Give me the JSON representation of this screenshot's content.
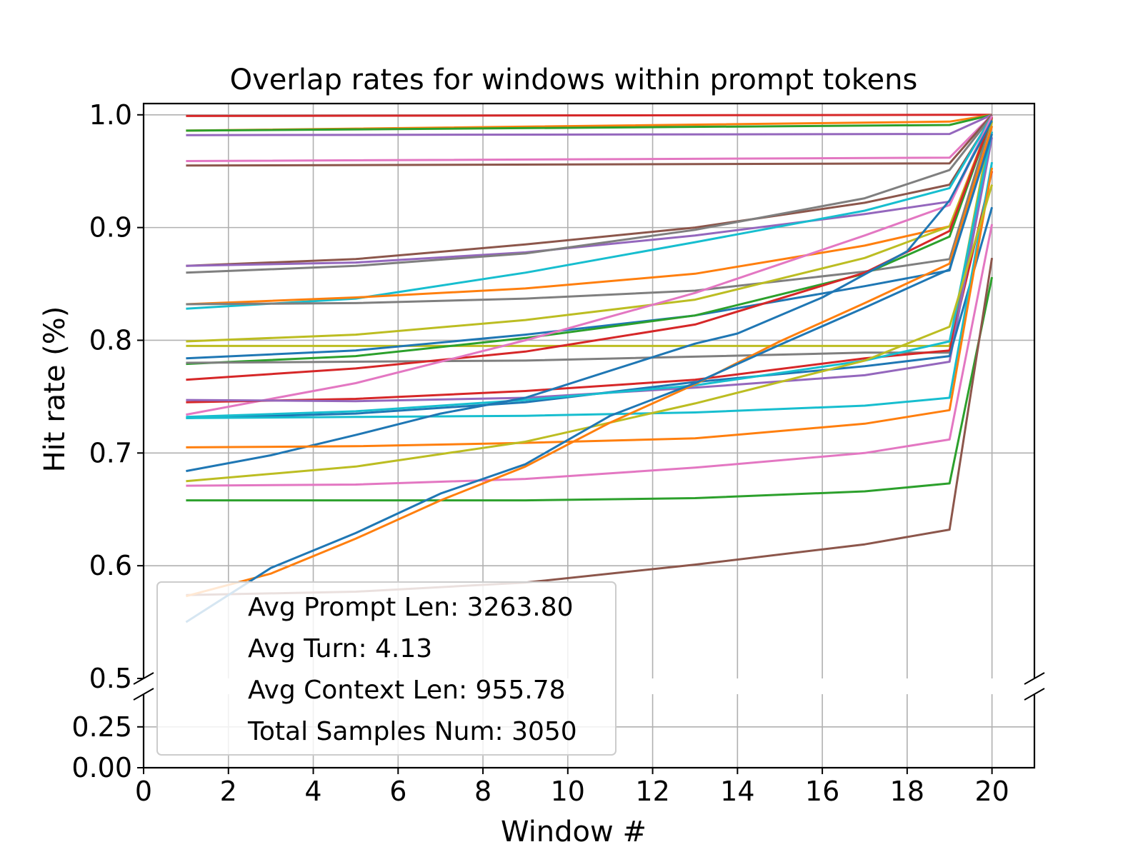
{
  "chart_data": {
    "type": "line",
    "title": "Overlap rates for windows within prompt tokens",
    "xlabel": "Window #",
    "ylabel": "Hit rate (%)",
    "xlim": [
      0,
      21
    ],
    "ylim_top": [
      0.5,
      1.01
    ],
    "ylim_bottom": [
      0,
      0.45
    ],
    "broken_axis": true,
    "grid": true,
    "x_ticks": [
      "0",
      "2",
      "4",
      "6",
      "8",
      "10",
      "12",
      "14",
      "16",
      "18",
      "20"
    ],
    "y_ticks_top": [
      "0.5",
      "0.6",
      "0.7",
      "0.8",
      "0.9",
      "1.0"
    ],
    "y_ticks_bottom": [
      "0.00",
      "0.25"
    ],
    "legend_placement": "lower-left",
    "legend_lines": [
      "Avg Prompt Len: 3263.80",
      "Avg Turn: 4.13",
      "Avg Context Len: 955.78",
      "Total Samples Num: 3050"
    ],
    "series": [
      {
        "color": "#d62728",
        "points": [
          [
            1,
            0.999
          ],
          [
            19,
            1.0
          ],
          [
            20,
            1.0
          ]
        ]
      },
      {
        "color": "#ff7f0e",
        "points": [
          [
            1,
            0.986
          ],
          [
            19,
            0.994
          ],
          [
            20,
            1.0
          ]
        ]
      },
      {
        "color": "#2ca02c",
        "points": [
          [
            1,
            0.986
          ],
          [
            19,
            0.991
          ],
          [
            20,
            1.0
          ]
        ]
      },
      {
        "color": "#9467bd",
        "points": [
          [
            1,
            0.982
          ],
          [
            19,
            0.983
          ],
          [
            20,
            1.0
          ]
        ]
      },
      {
        "color": "#e377c2",
        "points": [
          [
            1,
            0.959
          ],
          [
            19,
            0.962
          ],
          [
            20,
            1.0
          ]
        ]
      },
      {
        "color": "#8c564b",
        "points": [
          [
            1,
            0.955
          ],
          [
            19,
            0.957
          ],
          [
            20,
            1.0
          ]
        ]
      },
      {
        "color": "#8c564b",
        "points": [
          [
            1,
            0.866
          ],
          [
            5,
            0.872
          ],
          [
            9,
            0.885
          ],
          [
            13,
            0.9
          ],
          [
            17,
            0.922
          ],
          [
            19,
            0.938
          ],
          [
            20,
            0.998
          ]
        ]
      },
      {
        "color": "#9467bd",
        "points": [
          [
            1,
            0.866
          ],
          [
            5,
            0.869
          ],
          [
            9,
            0.878
          ],
          [
            13,
            0.893
          ],
          [
            17,
            0.912
          ],
          [
            19,
            0.923
          ],
          [
            20,
            0.998
          ]
        ]
      },
      {
        "color": "#7f7f7f",
        "points": [
          [
            1,
            0.86
          ],
          [
            5,
            0.866
          ],
          [
            9,
            0.877
          ],
          [
            13,
            0.898
          ],
          [
            17,
            0.926
          ],
          [
            19,
            0.951
          ],
          [
            20,
            0.999
          ]
        ]
      },
      {
        "color": "#17becf",
        "points": [
          [
            1,
            0.828
          ],
          [
            5,
            0.837
          ],
          [
            9,
            0.86
          ],
          [
            13,
            0.887
          ],
          [
            17,
            0.915
          ],
          [
            19,
            0.935
          ],
          [
            20,
            0.999
          ]
        ]
      },
      {
        "color": "#ff7f0e",
        "points": [
          [
            1,
            0.832
          ],
          [
            5,
            0.838
          ],
          [
            9,
            0.846
          ],
          [
            13,
            0.859
          ],
          [
            17,
            0.884
          ],
          [
            19,
            0.901
          ],
          [
            20,
            0.998
          ]
        ]
      },
      {
        "color": "#7f7f7f",
        "points": [
          [
            1,
            0.832
          ],
          [
            5,
            0.833
          ],
          [
            9,
            0.837
          ],
          [
            13,
            0.844
          ],
          [
            17,
            0.861
          ],
          [
            19,
            0.872
          ],
          [
            20,
            0.997
          ]
        ]
      },
      {
        "color": "#bcbd22",
        "points": [
          [
            1,
            0.799
          ],
          [
            5,
            0.805
          ],
          [
            9,
            0.818
          ],
          [
            13,
            0.836
          ],
          [
            17,
            0.873
          ],
          [
            19,
            0.901
          ],
          [
            20,
            0.996
          ]
        ]
      },
      {
        "color": "#bcbd22",
        "points": [
          [
            1,
            0.795
          ],
          [
            9,
            0.795
          ],
          [
            17,
            0.795
          ],
          [
            19,
            0.795
          ],
          [
            20,
            0.994
          ]
        ]
      },
      {
        "color": "#1f77b4",
        "points": [
          [
            1,
            0.784
          ],
          [
            5,
            0.791
          ],
          [
            9,
            0.805
          ],
          [
            13,
            0.822
          ],
          [
            17,
            0.848
          ],
          [
            19,
            0.862
          ],
          [
            20,
            0.99
          ]
        ]
      },
      {
        "color": "#2ca02c",
        "points": [
          [
            1,
            0.779
          ],
          [
            5,
            0.786
          ],
          [
            9,
            0.802
          ],
          [
            13,
            0.822
          ],
          [
            17,
            0.859
          ],
          [
            19,
            0.892
          ],
          [
            20,
            0.998
          ]
        ]
      },
      {
        "color": "#7f7f7f",
        "points": [
          [
            1,
            0.78
          ],
          [
            9,
            0.782
          ],
          [
            17,
            0.789
          ],
          [
            19,
            0.789
          ],
          [
            20,
            0.985
          ]
        ]
      },
      {
        "color": "#d62728",
        "points": [
          [
            1,
            0.765
          ],
          [
            5,
            0.775
          ],
          [
            9,
            0.79
          ],
          [
            13,
            0.814
          ],
          [
            17,
            0.86
          ],
          [
            19,
            0.897
          ],
          [
            20,
            0.998
          ]
        ]
      },
      {
        "color": "#e377c2",
        "points": [
          [
            1,
            0.734
          ],
          [
            5,
            0.762
          ],
          [
            9,
            0.8
          ],
          [
            13,
            0.842
          ],
          [
            17,
            0.893
          ],
          [
            19,
            0.92
          ],
          [
            20,
            0.999
          ]
        ]
      },
      {
        "color": "#d62728",
        "points": [
          [
            1,
            0.745
          ],
          [
            5,
            0.748
          ],
          [
            9,
            0.755
          ],
          [
            13,
            0.765
          ],
          [
            17,
            0.784
          ],
          [
            19,
            0.791
          ],
          [
            20,
            0.95
          ]
        ]
      },
      {
        "color": "#9467bd",
        "points": [
          [
            1,
            0.747
          ],
          [
            5,
            0.746
          ],
          [
            9,
            0.749
          ],
          [
            13,
            0.758
          ],
          [
            17,
            0.769
          ],
          [
            19,
            0.781
          ],
          [
            20,
            0.98
          ]
        ]
      },
      {
        "color": "#1f77b4",
        "points": [
          [
            1,
            0.731
          ],
          [
            5,
            0.735
          ],
          [
            9,
            0.745
          ],
          [
            13,
            0.763
          ],
          [
            17,
            0.777
          ],
          [
            19,
            0.786
          ],
          [
            20,
            0.918
          ]
        ]
      },
      {
        "color": "#17becf",
        "points": [
          [
            1,
            0.732
          ],
          [
            5,
            0.737
          ],
          [
            9,
            0.747
          ],
          [
            13,
            0.76
          ],
          [
            17,
            0.782
          ],
          [
            19,
            0.799
          ],
          [
            20,
            0.985
          ]
        ]
      },
      {
        "color": "#17becf",
        "points": [
          [
            1,
            0.731
          ],
          [
            5,
            0.732
          ],
          [
            9,
            0.733
          ],
          [
            13,
            0.736
          ],
          [
            17,
            0.742
          ],
          [
            19,
            0.749
          ],
          [
            20,
            0.958
          ]
        ]
      },
      {
        "color": "#1f77b4",
        "points": [
          [
            1,
            0.684
          ],
          [
            3,
            0.698
          ],
          [
            5,
            0.716
          ],
          [
            7,
            0.735
          ],
          [
            9,
            0.749
          ],
          [
            11,
            0.773
          ],
          [
            13,
            0.797
          ],
          [
            14,
            0.806
          ],
          [
            16,
            0.838
          ],
          [
            18,
            0.879
          ],
          [
            19,
            0.924
          ],
          [
            20,
            0.995
          ]
        ]
      },
      {
        "color": "#ff7f0e",
        "points": [
          [
            1,
            0.705
          ],
          [
            5,
            0.706
          ],
          [
            9,
            0.709
          ],
          [
            13,
            0.713
          ],
          [
            17,
            0.726
          ],
          [
            19,
            0.738
          ],
          [
            20,
            0.953
          ]
        ]
      },
      {
        "color": "#bcbd22",
        "points": [
          [
            1,
            0.675
          ],
          [
            5,
            0.688
          ],
          [
            9,
            0.71
          ],
          [
            13,
            0.744
          ],
          [
            17,
            0.782
          ],
          [
            19,
            0.812
          ],
          [
            20,
            0.938
          ]
        ]
      },
      {
        "color": "#e377c2",
        "points": [
          [
            1,
            0.671
          ],
          [
            5,
            0.672
          ],
          [
            9,
            0.677
          ],
          [
            13,
            0.687
          ],
          [
            17,
            0.7
          ],
          [
            19,
            0.712
          ],
          [
            20,
            0.903
          ]
        ]
      },
      {
        "color": "#2ca02c",
        "points": [
          [
            1,
            0.658
          ],
          [
            5,
            0.658
          ],
          [
            9,
            0.658
          ],
          [
            13,
            0.66
          ],
          [
            17,
            0.666
          ],
          [
            19,
            0.673
          ],
          [
            20,
            0.856
          ]
        ]
      },
      {
        "color": "#8c564b",
        "points": [
          [
            1,
            0.574
          ],
          [
            5,
            0.577
          ],
          [
            9,
            0.585
          ],
          [
            13,
            0.601
          ],
          [
            17,
            0.619
          ],
          [
            19,
            0.632
          ],
          [
            20,
            0.873
          ]
        ]
      },
      {
        "color": "#ff7f0e",
        "points": [
          [
            1,
            0.573
          ],
          [
            3,
            0.593
          ],
          [
            5,
            0.624
          ],
          [
            7,
            0.658
          ],
          [
            9,
            0.688
          ],
          [
            11,
            0.727
          ],
          [
            13,
            0.761
          ],
          [
            15,
            0.799
          ],
          [
            17,
            0.833
          ],
          [
            19,
            0.868
          ],
          [
            20,
            0.99
          ]
        ]
      },
      {
        "color": "#1f77b4",
        "points": [
          [
            1,
            0.55
          ],
          [
            3,
            0.598
          ],
          [
            5,
            0.629
          ],
          [
            7,
            0.664
          ],
          [
            9,
            0.69
          ],
          [
            11,
            0.733
          ],
          [
            13,
            0.762
          ],
          [
            15,
            0.796
          ],
          [
            17,
            0.829
          ],
          [
            19,
            0.863
          ],
          [
            20,
            0.983
          ]
        ]
      }
    ]
  }
}
